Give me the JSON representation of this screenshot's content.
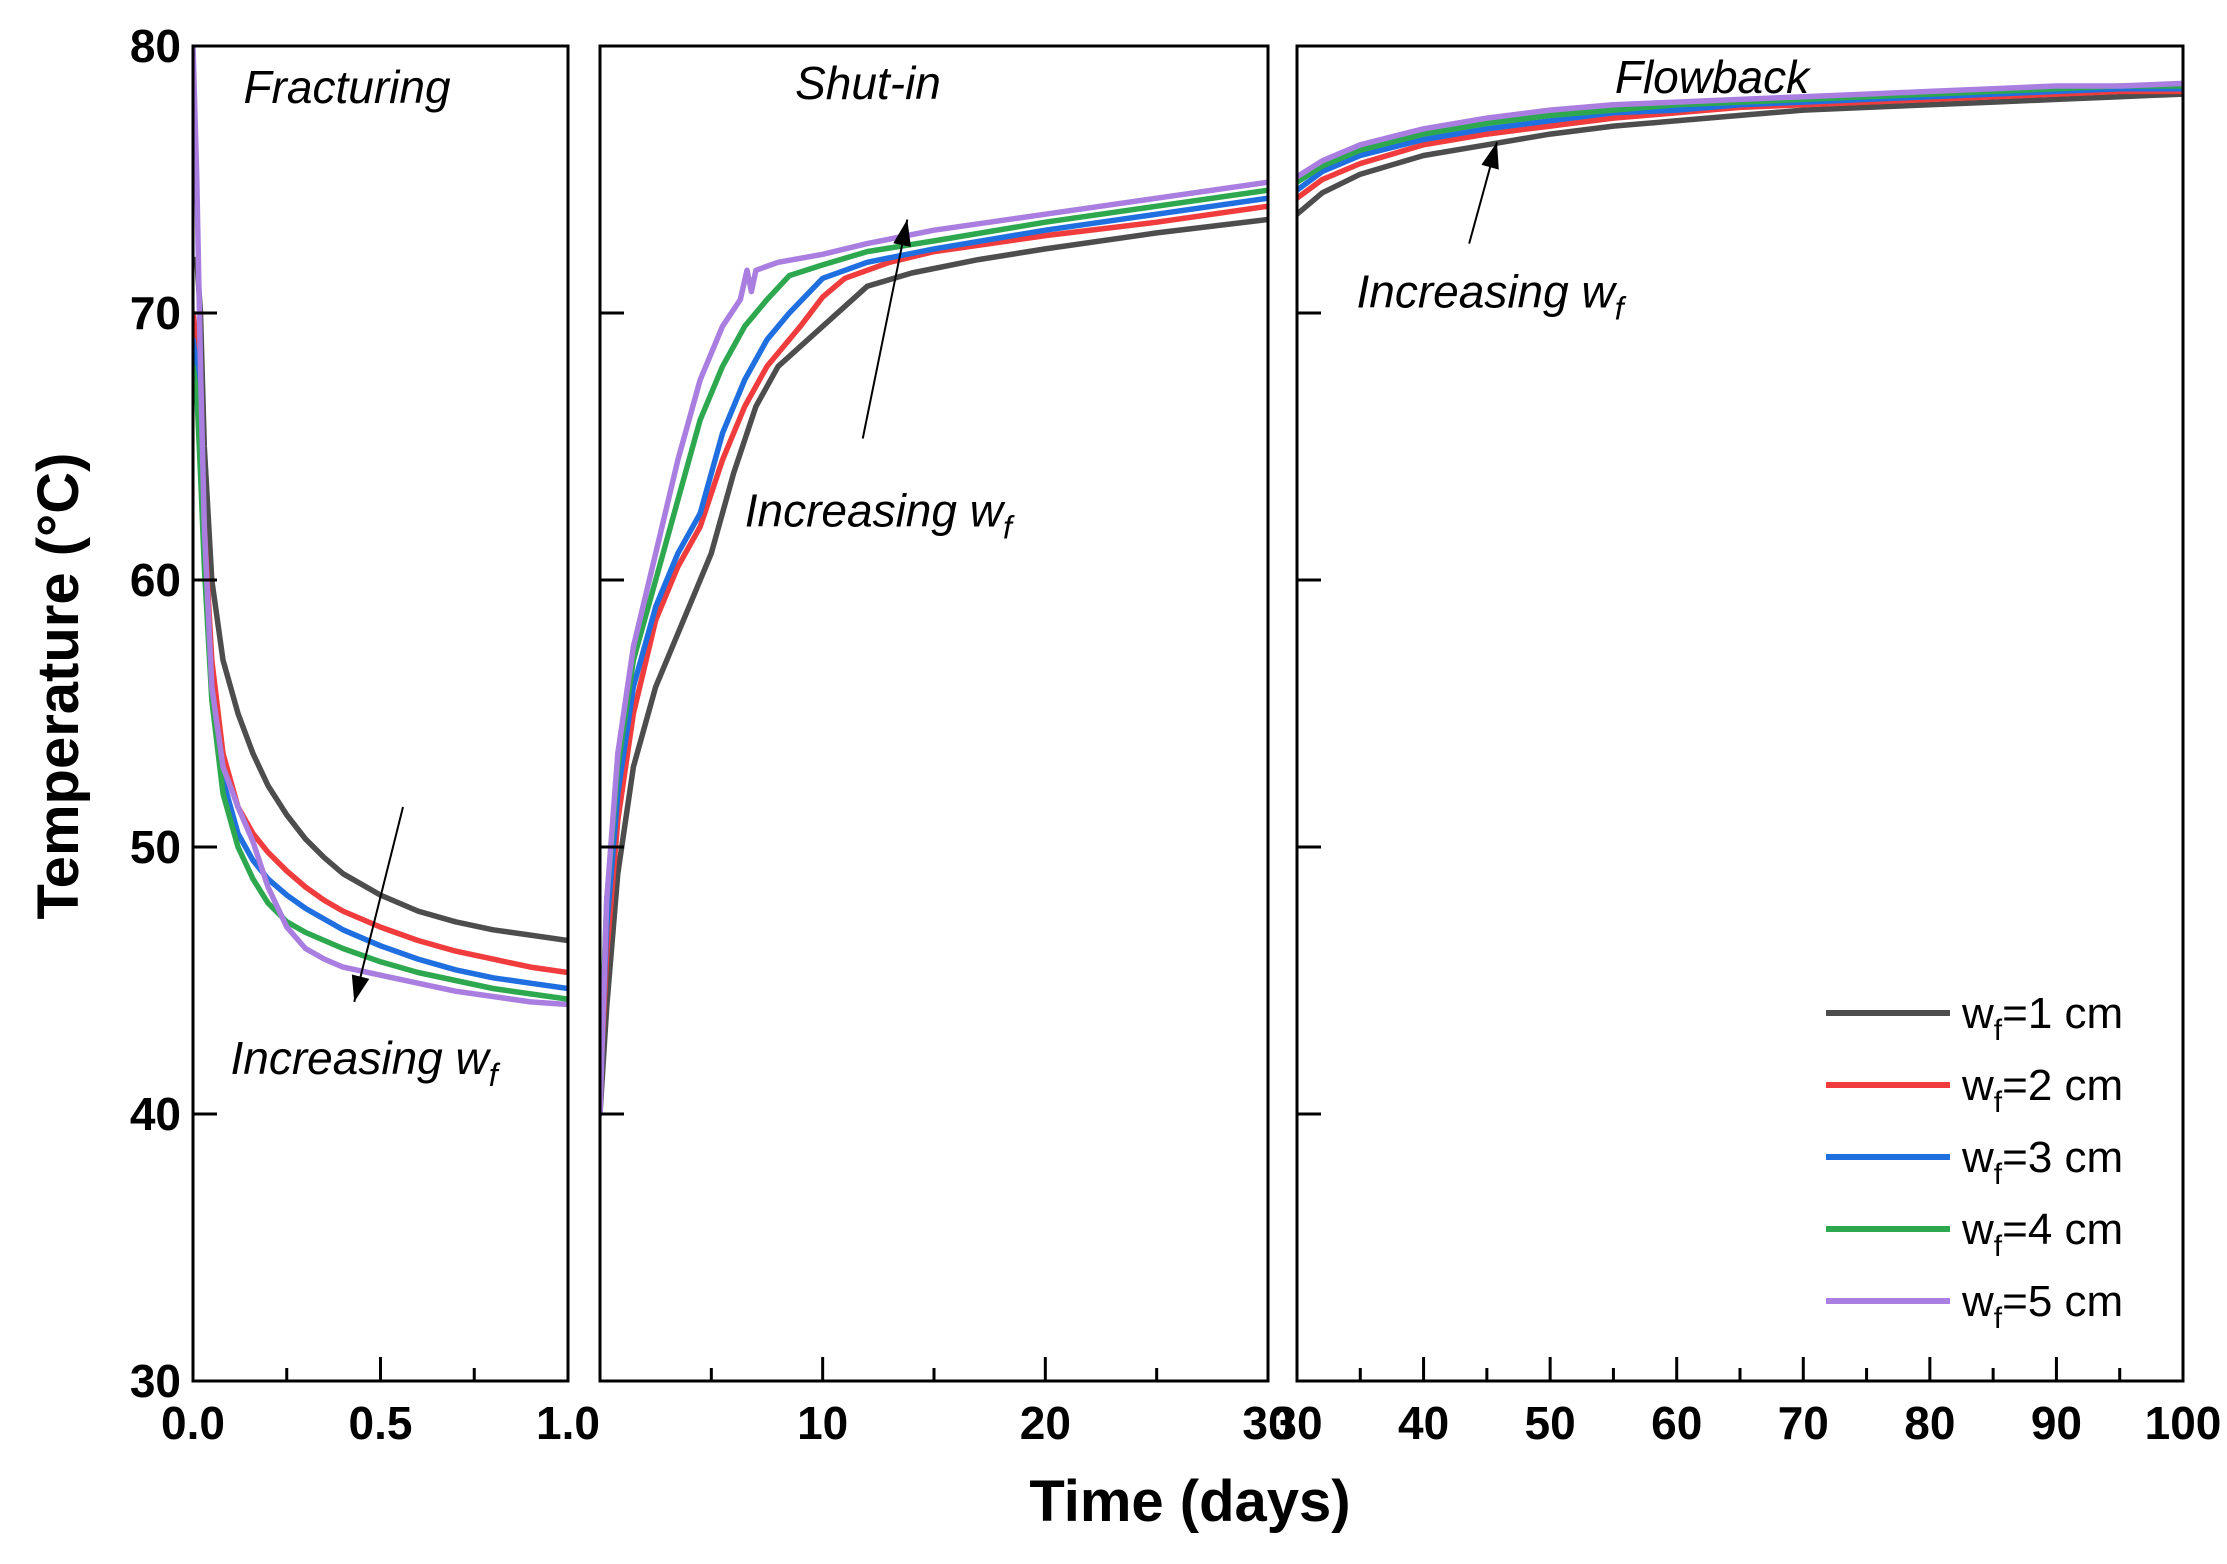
{
  "chart_data": {
    "type": "line",
    "xlabel": "Time (days)",
    "ylabel": "Temperature (°C)",
    "ylim": [
      30,
      80
    ],
    "yticks": [
      30,
      40,
      50,
      60,
      70,
      80
    ],
    "ytick_labels": [
      "30",
      "40",
      "50",
      "60",
      "70",
      "80"
    ],
    "legend_position": "bottom-right",
    "legend": [
      {
        "prefix": "w",
        "sub": "f",
        "suffix": "=1 cm",
        "color": "#4d4d4d"
      },
      {
        "prefix": "w",
        "sub": "f",
        "suffix": "=2 cm",
        "color": "#f03c3c"
      },
      {
        "prefix": "w",
        "sub": "f",
        "suffix": "=3 cm",
        "color": "#1f6fe0"
      },
      {
        "prefix": "w",
        "sub": "f",
        "suffix": "=4 cm",
        "color": "#2ea84f"
      },
      {
        "prefix": "w",
        "sub": "f",
        "suffix": "=5 cm",
        "color": "#a97ee0"
      }
    ],
    "panels": [
      {
        "title": "Fracturing",
        "xlim": [
          0,
          1
        ],
        "xticks": [
          0,
          0.5,
          1
        ],
        "xtick_labels": [
          "0.0",
          "0.5",
          "1.0"
        ],
        "annotation": {
          "text": "Increasing w",
          "sub": "f",
          "direction": "down",
          "arrow_from": [
            0.56,
            51.5
          ],
          "arrow_to": [
            0.43,
            44.2
          ],
          "text_at": [
            0.1,
            41.5
          ]
        },
        "series": [
          {
            "name": "wf=1 cm",
            "x": [
              0.0,
              0.01,
              0.02,
              0.03,
              0.05,
              0.08,
              0.12,
              0.16,
              0.2,
              0.25,
              0.3,
              0.35,
              0.4,
              0.5,
              0.6,
              0.7,
              0.8,
              0.9,
              1.0
            ],
            "y": [
              72,
              72,
              70,
              65,
              60,
              57,
              55,
              53.5,
              52.3,
              51.2,
              50.3,
              49.6,
              49,
              48.2,
              47.6,
              47.2,
              46.9,
              46.7,
              46.5
            ]
          },
          {
            "name": "wf=2 cm",
            "x": [
              0.0,
              0.01,
              0.02,
              0.03,
              0.05,
              0.08,
              0.12,
              0.16,
              0.2,
              0.25,
              0.3,
              0.35,
              0.4,
              0.5,
              0.6,
              0.7,
              0.8,
              0.9,
              1.0
            ],
            "y": [
              70,
              69,
              66,
              62,
              57,
              53.5,
              51.5,
              50.5,
              49.8,
              49.1,
              48.5,
              48,
              47.6,
              47,
              46.5,
              46.1,
              45.8,
              45.5,
              45.3
            ]
          },
          {
            "name": "wf=3 cm",
            "x": [
              0.0,
              0.01,
              0.02,
              0.03,
              0.05,
              0.08,
              0.12,
              0.16,
              0.2,
              0.25,
              0.3,
              0.35,
              0.4,
              0.5,
              0.6,
              0.7,
              0.8,
              0.9,
              1.0
            ],
            "y": [
              69,
              68,
              65,
              61,
              56,
              52.5,
              50.5,
              49.5,
              48.8,
              48.2,
              47.7,
              47.3,
              46.9,
              46.3,
              45.8,
              45.4,
              45.1,
              44.9,
              44.7
            ]
          },
          {
            "name": "wf=4 cm",
            "x": [
              0.0,
              0.01,
              0.02,
              0.03,
              0.05,
              0.08,
              0.12,
              0.16,
              0.2,
              0.25,
              0.3,
              0.35,
              0.4,
              0.5,
              0.6,
              0.7,
              0.8,
              0.9,
              1.0
            ],
            "y": [
              68,
              67,
              64,
              60.5,
              55.5,
              52,
              50,
              48.8,
              47.9,
              47.2,
              46.8,
              46.5,
              46.2,
              45.7,
              45.3,
              45,
              44.7,
              44.5,
              44.3
            ]
          },
          {
            "name": "wf=5 cm",
            "x": [
              0.0,
              0.01,
              0.02,
              0.03,
              0.05,
              0.08,
              0.12,
              0.16,
              0.2,
              0.25,
              0.3,
              0.35,
              0.4,
              0.5,
              0.6,
              0.7,
              0.8,
              0.9,
              1.0
            ],
            "y": [
              80,
              75,
              68,
              62,
              56,
              53,
              51.5,
              50.2,
              48.5,
              47,
              46.2,
              45.8,
              45.5,
              45.2,
              44.9,
              44.6,
              44.4,
              44.2,
              44.1
            ]
          }
        ]
      },
      {
        "title": "Shut-in",
        "xlim": [
          0,
          30
        ],
        "xticks": [
          10,
          20,
          30
        ],
        "xtick_labels": [
          "10",
          "20",
          "30"
        ],
        "annotation": {
          "text": "Increasing w",
          "sub": "f",
          "direction": "up",
          "arrow_from": [
            11.8,
            65.3
          ],
          "arrow_to": [
            13.8,
            73.5
          ],
          "text_at": [
            6.5,
            62
          ]
        },
        "series": [
          {
            "name": "wf=1 cm",
            "x": [
              0,
              0.3,
              0.8,
              1.5,
              2.5,
              4,
              5,
              6,
              7,
              8,
              10,
              12,
              14,
              17,
              20,
              25,
              30
            ],
            "y": [
              40,
              44,
              49,
              53,
              56,
              59,
              61,
              64,
              66.5,
              68,
              69.5,
              71,
              71.5,
              72,
              72.4,
              73,
              73.5
            ]
          },
          {
            "name": "wf=2 cm",
            "x": [
              0,
              0.3,
              0.8,
              1.5,
              2.5,
              3.5,
              4.5,
              5.5,
              6.5,
              7.5,
              9,
              10,
              11,
              13,
              15,
              20,
              25,
              30
            ],
            "y": [
              41,
              46,
              51,
              55,
              58.5,
              60.5,
              62,
              64.5,
              66.5,
              68,
              69.5,
              70.6,
              71.3,
              71.9,
              72.3,
              72.9,
              73.4,
              74
            ]
          },
          {
            "name": "wf=3 cm",
            "x": [
              0,
              0.3,
              0.8,
              1.5,
              2.5,
              3.5,
              4.5,
              5.5,
              6.5,
              7.5,
              8.5,
              10,
              12,
              15,
              20,
              25,
              30
            ],
            "y": [
              41,
              47,
              52,
              56,
              59,
              61,
              62.5,
              65.5,
              67.5,
              69,
              70,
              71.3,
              71.9,
              72.4,
              73.1,
              73.7,
              74.3
            ]
          },
          {
            "name": "wf=4 cm",
            "x": [
              0,
              0.3,
              0.8,
              1.5,
              2.5,
              3.5,
              4.5,
              5.5,
              6.5,
              7.5,
              8.5,
              10,
              12,
              15,
              20,
              25,
              30
            ],
            "y": [
              41,
              48,
              53,
              57,
              60,
              63,
              66,
              68,
              69.5,
              70.5,
              71.4,
              71.8,
              72.3,
              72.7,
              73.4,
              74,
              74.6
            ]
          },
          {
            "name": "wf=5 cm",
            "x": [
              0,
              0.3,
              0.8,
              1.5,
              2.5,
              3.5,
              4.5,
              5.5,
              6.3,
              6.6,
              6.8,
              7.0,
              8,
              10,
              12,
              15,
              20,
              25,
              30
            ],
            "y": [
              40,
              48,
              53.5,
              57.5,
              61,
              64.5,
              67.5,
              69.5,
              70.5,
              71.6,
              70.8,
              71.6,
              71.9,
              72.2,
              72.6,
              73.1,
              73.7,
              74.3,
              74.9
            ]
          }
        ]
      },
      {
        "title": "Flowback",
        "xlim": [
          30,
          100
        ],
        "xticks": [
          30,
          40,
          50,
          60,
          70,
          80,
          90,
          100
        ],
        "xtick_labels": [
          "30",
          "40",
          "50",
          "60",
          "70",
          "80",
          "90",
          "100"
        ],
        "annotation": {
          "text": "Increasing w",
          "sub": "f",
          "direction": "up",
          "arrow_from": [
            43.6,
            72.6
          ],
          "arrow_to": [
            45.8,
            76.4
          ],
          "text_at": [
            34.7,
            70.2
          ]
        },
        "series": [
          {
            "name": "wf=1 cm",
            "x": [
              30,
              32,
              35,
              40,
              45,
              50,
              55,
              60,
              65,
              70,
              75,
              80,
              85,
              90,
              95,
              100
            ],
            "y": [
              73.7,
              74.5,
              75.2,
              75.9,
              76.3,
              76.7,
              77.0,
              77.2,
              77.4,
              77.6,
              77.7,
              77.8,
              77.9,
              78.0,
              78.1,
              78.2
            ]
          },
          {
            "name": "wf=2 cm",
            "x": [
              30,
              32,
              35,
              40,
              45,
              50,
              55,
              60,
              65,
              70,
              75,
              80,
              85,
              90,
              95,
              100
            ],
            "y": [
              74.3,
              75.0,
              75.6,
              76.3,
              76.7,
              77.0,
              77.3,
              77.5,
              77.7,
              77.8,
              77.9,
              78.0,
              78.1,
              78.2,
              78.3,
              78.3
            ]
          },
          {
            "name": "wf=3 cm",
            "x": [
              30,
              32,
              35,
              40,
              45,
              50,
              55,
              60,
              65,
              70,
              75,
              80,
              85,
              90,
              95,
              100
            ],
            "y": [
              74.6,
              75.3,
              75.9,
              76.5,
              76.9,
              77.2,
              77.5,
              77.6,
              77.8,
              77.9,
              78.0,
              78.1,
              78.2,
              78.3,
              78.4,
              78.4
            ]
          },
          {
            "name": "wf=4 cm",
            "x": [
              30,
              32,
              35,
              40,
              45,
              50,
              55,
              60,
              65,
              70,
              75,
              80,
              85,
              90,
              95,
              100
            ],
            "y": [
              74.9,
              75.5,
              76.1,
              76.7,
              77.1,
              77.4,
              77.6,
              77.8,
              77.9,
              78.0,
              78.1,
              78.2,
              78.3,
              78.4,
              78.5,
              78.5
            ]
          },
          {
            "name": "wf=5 cm",
            "x": [
              30,
              32,
              35,
              40,
              45,
              50,
              55,
              60,
              65,
              70,
              75,
              80,
              85,
              90,
              95,
              100
            ],
            "y": [
              75.1,
              75.7,
              76.3,
              76.9,
              77.3,
              77.6,
              77.8,
              77.9,
              78.0,
              78.1,
              78.2,
              78.3,
              78.4,
              78.5,
              78.5,
              78.6
            ]
          }
        ]
      }
    ]
  }
}
